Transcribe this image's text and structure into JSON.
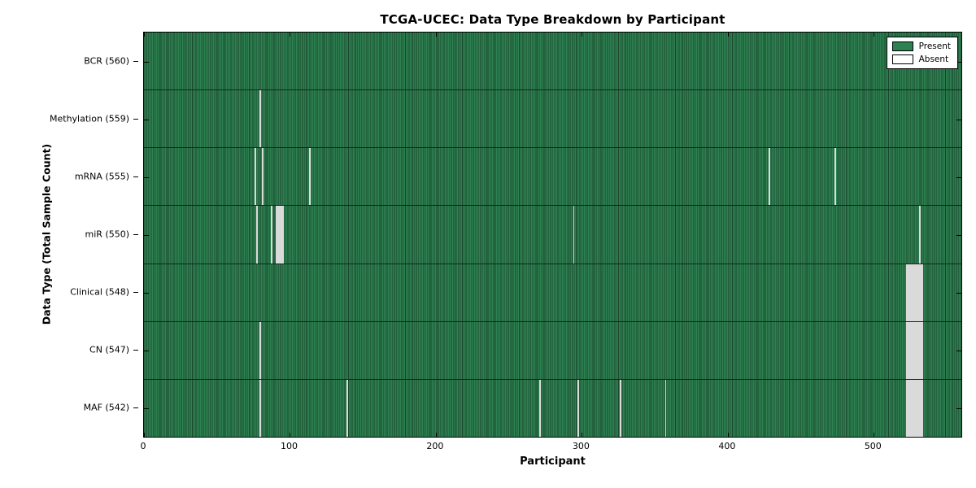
{
  "chart_data": {
    "type": "heatmap",
    "title": "TCGA-UCEC: Data Type Breakdown by Participant",
    "xlabel": "Participant",
    "ylabel": "Data Type (Total Sample Count)",
    "xlim": [
      0,
      560
    ],
    "x_ticks": [
      0,
      100,
      200,
      300,
      400,
      500
    ],
    "n_participants": 560,
    "grid": false,
    "legend_position": "upper right",
    "colors": {
      "present": "#2e8152",
      "present_edge": "#18452a",
      "absent": "#fbfbfb",
      "absent_edge": "#b9b9b9",
      "frame": "#000000",
      "background": "#ffffff"
    },
    "legend": [
      {
        "label": "Present",
        "color": "#2e8152"
      },
      {
        "label": "Absent",
        "color": "#ffffff"
      }
    ],
    "rows": [
      {
        "name": "bcr",
        "label": "BCR (560)",
        "total_present": 560,
        "absent_participants": []
      },
      {
        "name": "methylation",
        "label": "Methylation (559)",
        "total_present": 559,
        "absent_participants": [
          79
        ]
      },
      {
        "name": "mrna",
        "label": "mRNA (555)",
        "total_present": 555,
        "absent_participants": [
          76,
          81,
          113,
          428,
          473
        ]
      },
      {
        "name": "mir",
        "label": "miR (550)",
        "total_present": 550,
        "absent_participants": [
          77,
          87,
          90,
          91,
          92,
          93,
          94,
          95,
          294,
          531
        ]
      },
      {
        "name": "clinical",
        "label": "Clinical (548)",
        "total_present": 548,
        "absent_participants": [
          522,
          523,
          524,
          525,
          526,
          527,
          528,
          529,
          530,
          531,
          532,
          533
        ]
      },
      {
        "name": "cn",
        "label": "CN (547)",
        "total_present": 547,
        "absent_participants": [
          79,
          522,
          523,
          524,
          525,
          526,
          527,
          528,
          529,
          530,
          531,
          532,
          533
        ]
      },
      {
        "name": "maf",
        "label": "MAF (542)",
        "total_present": 542,
        "absent_participants": [
          79,
          139,
          271,
          297,
          326,
          357,
          522,
          523,
          524,
          525,
          526,
          527,
          528,
          529,
          530,
          531,
          532,
          533
        ]
      }
    ]
  }
}
